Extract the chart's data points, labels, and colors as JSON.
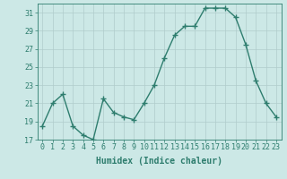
{
  "x": [
    0,
    1,
    2,
    3,
    4,
    5,
    6,
    7,
    8,
    9,
    10,
    11,
    12,
    13,
    14,
    15,
    16,
    17,
    18,
    19,
    20,
    21,
    22,
    23
  ],
  "y": [
    18.5,
    21.0,
    22.0,
    18.5,
    17.5,
    17.0,
    21.5,
    20.0,
    19.5,
    19.2,
    21.0,
    23.0,
    26.0,
    28.5,
    29.5,
    29.5,
    31.5,
    31.5,
    31.5,
    30.5,
    27.5,
    23.5,
    21.0,
    19.5
  ],
  "line_color": "#2e7d6e",
  "marker": "+",
  "marker_size": 4,
  "bg_color": "#cce8e6",
  "grid_major_color": "#b0cccb",
  "grid_minor_color": "#c4dedd",
  "tick_color": "#2e7d6e",
  "xlabel": "Humidex (Indice chaleur)",
  "ylim": [
    17,
    32
  ],
  "xlim": [
    -0.5,
    23.5
  ],
  "yticks": [
    17,
    19,
    21,
    23,
    25,
    27,
    29,
    31
  ],
  "xticks": [
    0,
    1,
    2,
    3,
    4,
    5,
    6,
    7,
    8,
    9,
    10,
    11,
    12,
    13,
    14,
    15,
    16,
    17,
    18,
    19,
    20,
    21,
    22,
    23
  ],
  "xtick_labels": [
    "0",
    "1",
    "2",
    "3",
    "4",
    "5",
    "6",
    "7",
    "8",
    "9",
    "10",
    "11",
    "12",
    "13",
    "14",
    "15",
    "16",
    "17",
    "18",
    "19",
    "20",
    "21",
    "22",
    "23"
  ],
  "xlabel_fontsize": 7,
  "tick_fontsize": 6,
  "line_width": 1.0
}
